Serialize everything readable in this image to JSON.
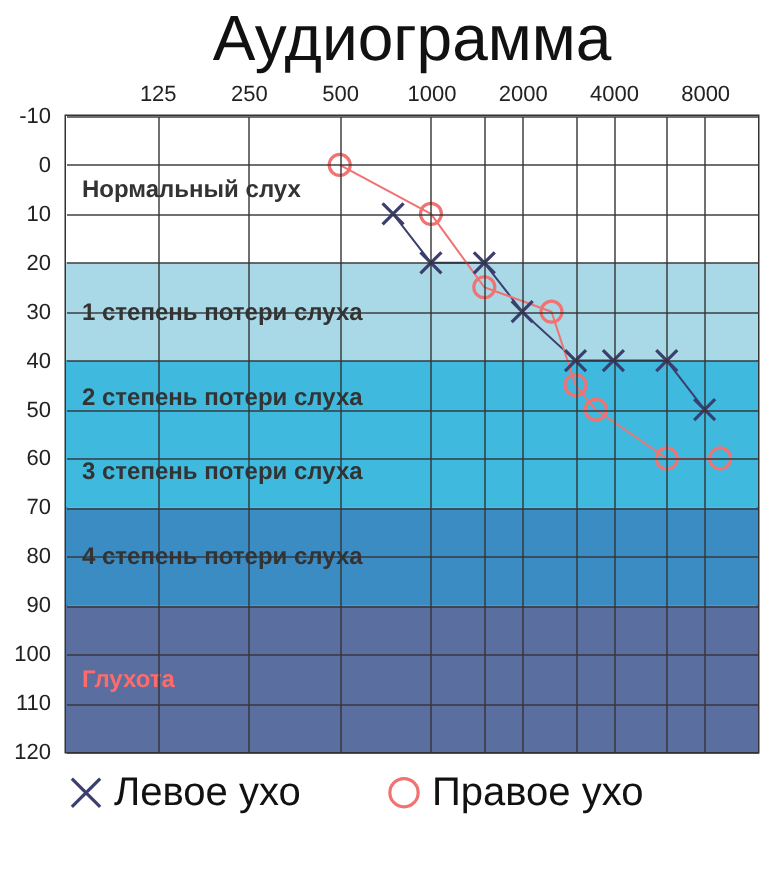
{
  "chart_data": {
    "type": "line",
    "title": "Аудиограмма",
    "x": [
      750,
      1000,
      1500,
      2000,
      3000,
      4000,
      6000,
      8000
    ],
    "series": [
      {
        "name": "Левое ухо",
        "color": "#3b3f6e",
        "marker": "cross",
        "values": [
          10,
          20,
          20,
          30,
          40,
          40,
          40,
          50
        ]
      },
      {
        "name": "Правое ухо",
        "color": "#f07272",
        "marker": "circle",
        "x": [
          500,
          1000,
          1500,
          2500,
          3000,
          3500,
          6000,
          9000
        ],
        "values": [
          0,
          10,
          25,
          30,
          45,
          50,
          60,
          60
        ]
      }
    ],
    "log": "x",
    "xlim": [
      62.5,
      12000
    ],
    "xticks": [
      125,
      250,
      500,
      1000,
      {
        "value": 1500,
        "label": null
      },
      2000,
      {
        "value": 3000,
        "label": null
      },
      4000,
      {
        "value": 6000,
        "label": null
      },
      8000
    ],
    "ylim": [
      120,
      -10
    ],
    "yticks": [
      -10,
      0,
      10,
      20,
      30,
      40,
      50,
      60,
      70,
      80,
      90,
      100,
      110,
      120
    ],
    "bands": [
      {
        "axis": "y",
        "from": -10,
        "to": 20,
        "label": "Нормальный слух",
        "color": "#ffffff"
      },
      {
        "axis": "y",
        "from": 20,
        "to": 40,
        "label": "1 степень потери слуха",
        "color": "#a9d9e6"
      },
      {
        "axis": "y",
        "from": 40,
        "to": 55,
        "label": "2 степень потери слуха",
        "color": "#3fbade"
      },
      {
        "axis": "y",
        "from": 55,
        "to": 70,
        "label": "3 степень потери слуха",
        "color": "#3fbade"
      },
      {
        "axis": "y",
        "from": 70,
        "to": 90,
        "label": "4 степень потери слуха",
        "color": "#3c8cc4"
      },
      {
        "axis": "y",
        "from": 90,
        "to": 120,
        "label": "Глухота",
        "color": "#5a6fa0"
      }
    ],
    "grid": true,
    "legend": "bottom"
  }
}
